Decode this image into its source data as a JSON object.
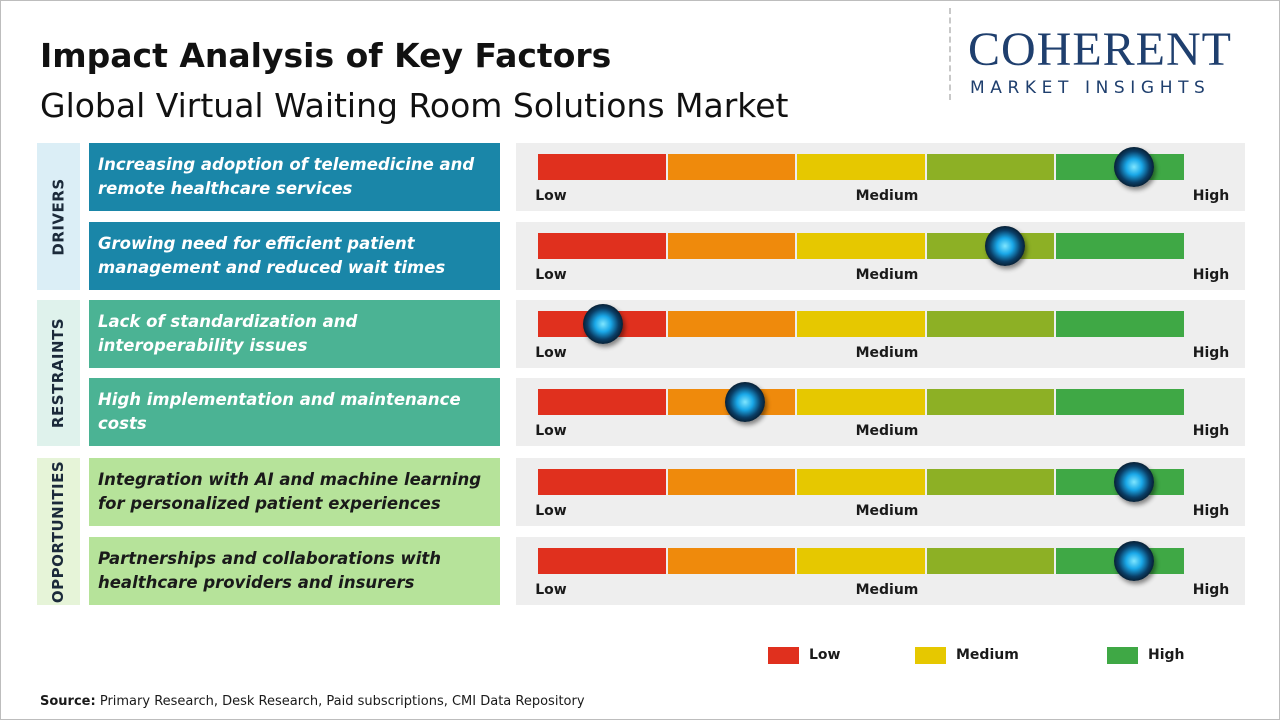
{
  "header": {
    "title": "Impact Analysis of Key Factors",
    "subtitle": "Global Virtual Waiting Room Solutions Market"
  },
  "logo": {
    "name": "COHERENT",
    "tagline": "MARKET INSIGHTS"
  },
  "scale_labels": [
    "Low",
    "Medium",
    "High"
  ],
  "segment_colors": [
    "#e0301e",
    "#ef8a0c",
    "#e6c800",
    "#8db025",
    "#3fa845"
  ],
  "impact_range": [
    0,
    5
  ],
  "groups": [
    {
      "label": "DRIVERS",
      "side_color": "#dbeef6",
      "box_color": "#1a86a8",
      "text_color": "#ffffff",
      "factors": [
        {
          "text": "Increasing adoption of telemedicine and remote healthcare services",
          "impact": 4.6
        },
        {
          "text": "Growing need for efficient patient management and reduced wait times",
          "impact": 3.6
        }
      ]
    },
    {
      "label": "RESTRAINTS",
      "side_color": "#dff2ec",
      "box_color": "#4bb394",
      "text_color": "#ffffff",
      "factors": [
        {
          "text": "Lack of standardization and interoperability issues",
          "impact": 0.5
        },
        {
          "text": "High implementation and maintenance costs",
          "impact": 1.6
        }
      ]
    },
    {
      "label": "OPPORTUNITIES",
      "side_color": "#e6f4d8",
      "box_color": "#b6e39a",
      "text_color": "#1a1a1a",
      "factors": [
        {
          "text": "Integration with AI and machine learning for personalized patient experiences",
          "impact": 4.6
        },
        {
          "text": "Partnerships and collaborations with healthcare providers and insurers",
          "impact": 4.6
        }
      ]
    }
  ],
  "legend": [
    {
      "label": "Low",
      "color": "#e0301e"
    },
    {
      "label": "Medium",
      "color": "#e6c800"
    },
    {
      "label": "High",
      "color": "#3fa845"
    }
  ],
  "source": {
    "label": "Source:",
    "text": "Primary Research, Desk Research, Paid subscriptions, CMI Data Repository"
  }
}
